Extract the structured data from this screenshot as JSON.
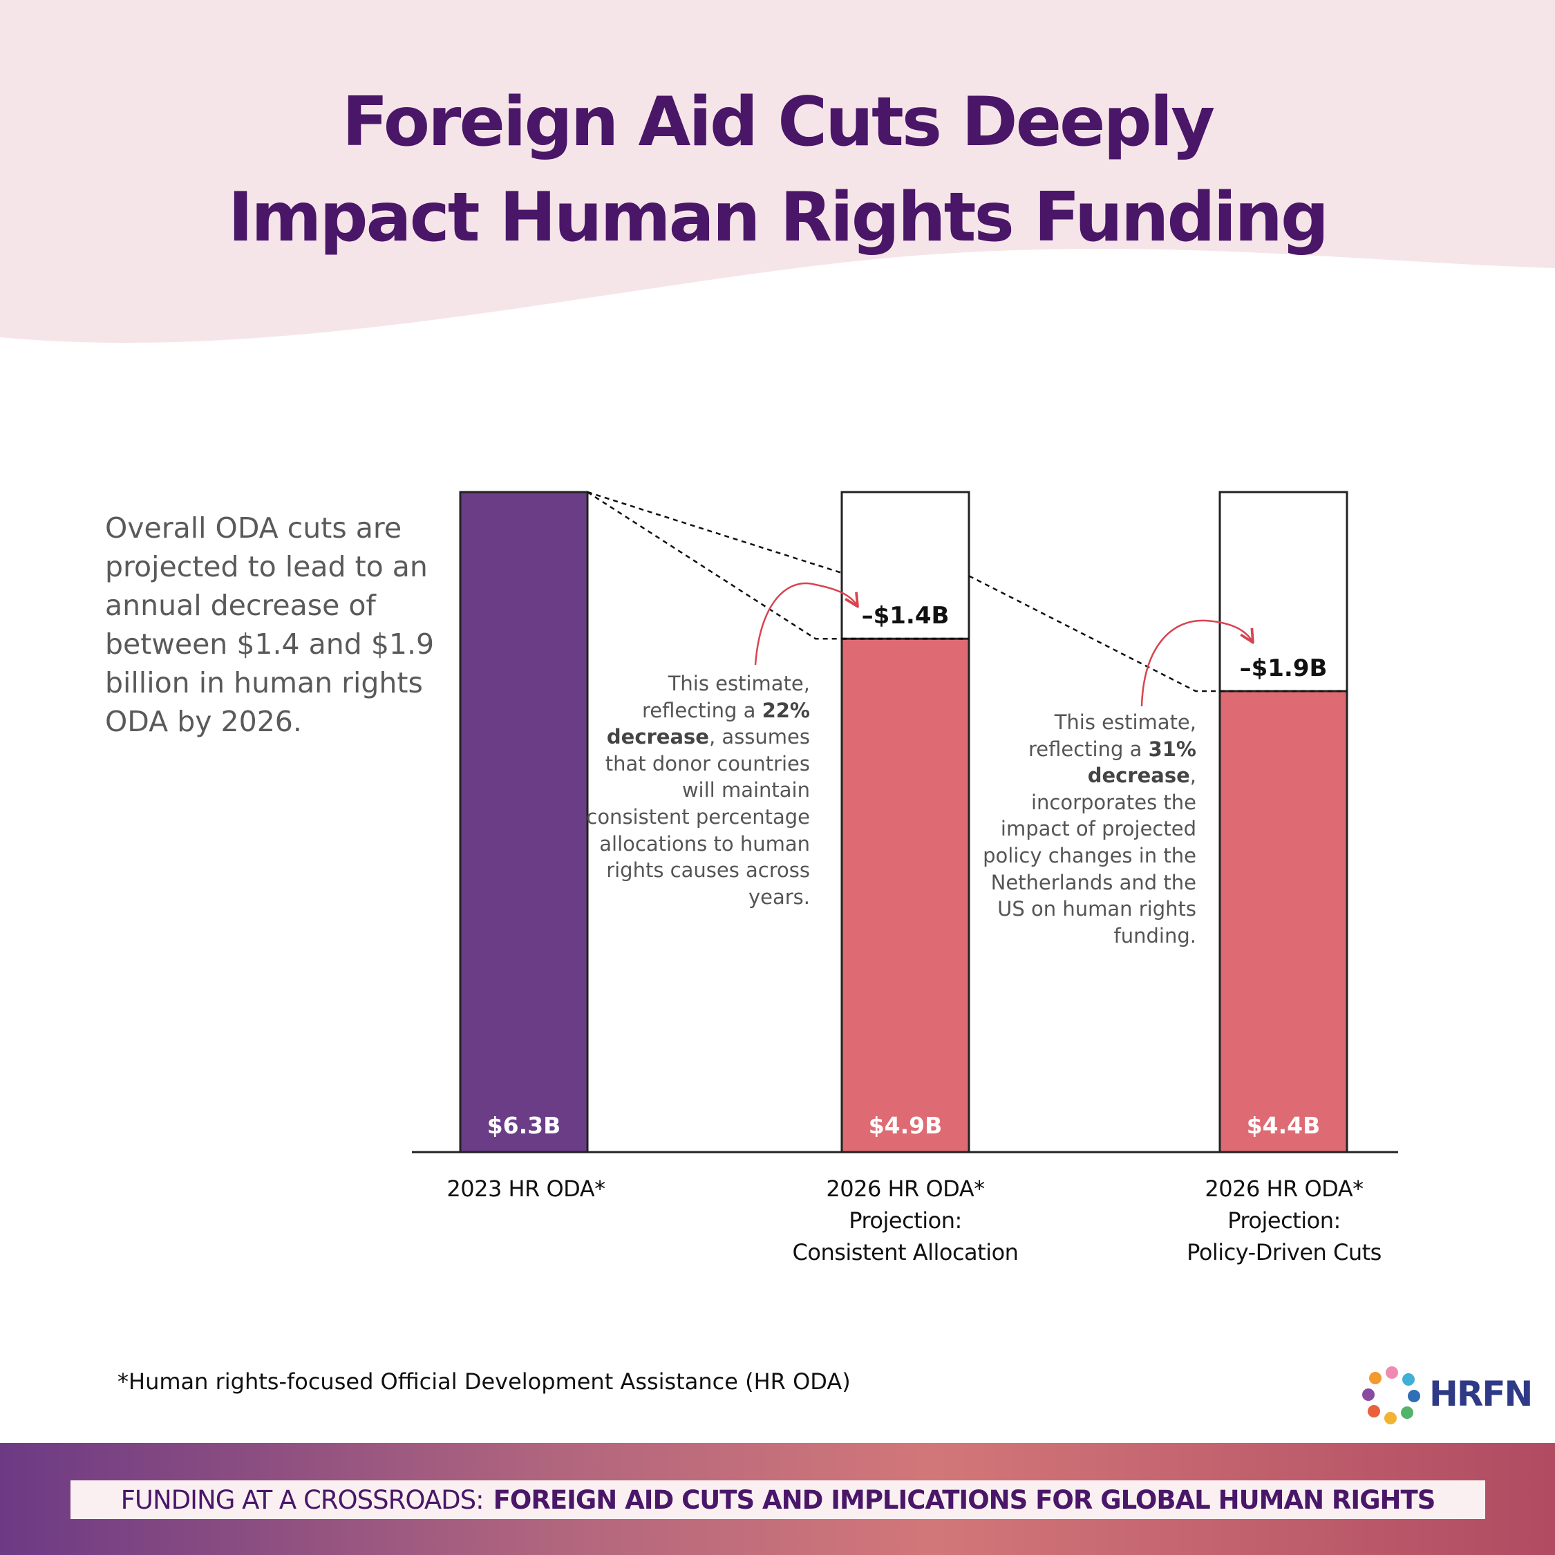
{
  "title": {
    "line1": "Foreign Aid Cuts Deeply",
    "line2": "Impact Human Rights Funding"
  },
  "intro": "Overall ODA cuts are projected to lead to an annual decrease of between $1.4 and $1.9 billion in human rights ODA by 2026.",
  "notes": [
    {
      "pre": "This estimate, reflecting a ",
      "bold": "22% decrease",
      "post": ", assumes that donor countries will maintain consistent percentage allocations to human rights causes across years."
    },
    {
      "pre": "This estimate, reflecting a ",
      "bold": "31% decrease",
      "post": ", incorporates the impact of projected policy changes in the Netherlands and the US on human rights funding."
    }
  ],
  "chart_data": {
    "type": "bar",
    "categories": [
      "2023 HR ODA* | | ",
      "2026 HR ODA* Projection: Consistent Allocation",
      "2026 HR ODA* Projection: Policy-Driven Cuts"
    ],
    "category_lines": [
      [
        "2023 HR ODA*"
      ],
      [
        "2026 HR ODA*",
        "Projection:",
        "Consistent Allocation"
      ],
      [
        "2026 HR ODA*",
        "Projection:",
        "Policy-Driven Cuts"
      ]
    ],
    "values": [
      6.3,
      4.9,
      4.4
    ],
    "value_labels": [
      "$6.3B",
      "$4.9B",
      "$4.4B"
    ],
    "decreases": [
      null,
      1.4,
      1.9
    ],
    "decrease_labels": [
      "",
      "–$1.4B",
      "–$1.9B"
    ],
    "ylim": [
      0,
      6.3
    ],
    "grid": false,
    "colors": {
      "baseline_bar": "#6a3d86",
      "projection_bar": "#de6b73",
      "annotation_arrow": "#d9434f"
    }
  },
  "footnote": "*Human rights-focused Official Development Assistance (HR ODA)",
  "logo": {
    "text": "HRFN"
  },
  "banner": {
    "part1": "FUNDING AT A CROSSROADS:",
    "part2": "FOREIGN AID CUTS AND IMPLICATIONS FOR GLOBAL HUMAN RIGHTS"
  },
  "colors": {
    "title": "#4a1668",
    "header_bg": "#f6e5e8",
    "banner_bg": "#faf0f2"
  }
}
